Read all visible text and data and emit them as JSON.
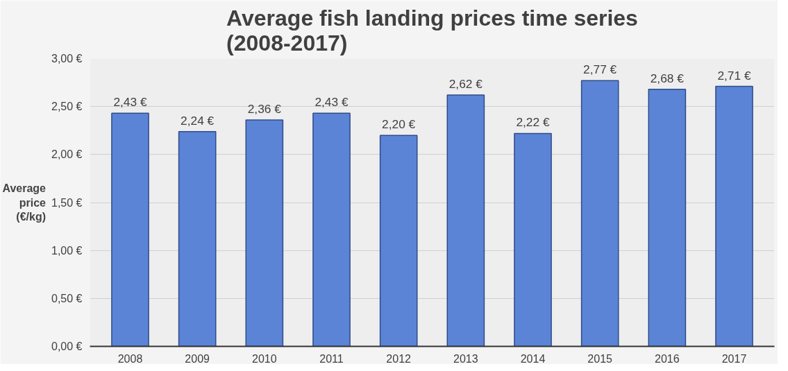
{
  "chart_data": {
    "type": "bar",
    "title": "Average fish landing prices time series (2008-2017)",
    "ylabel": "Average price (€/kg)",
    "categories": [
      "2008",
      "2009",
      "2010",
      "2011",
      "2012",
      "2013",
      "2014",
      "2015",
      "2016",
      "2017"
    ],
    "values": [
      2.43,
      2.24,
      2.36,
      2.43,
      2.2,
      2.62,
      2.22,
      2.77,
      2.68,
      2.71
    ],
    "value_labels": [
      "2,43 €",
      "2,24 €",
      "2,36 €",
      "2,43 €",
      "2,20 €",
      "2,62 €",
      "2,22 €",
      "2,77 €",
      "2,68 €",
      "2,71 €"
    ],
    "color": "#5b84d6",
    "ylim": [
      0,
      3
    ],
    "yticks": [
      {
        "value": 0,
        "label": "0,00 €"
      },
      {
        "value": 0.5,
        "label": "0,50 €"
      },
      {
        "value": 1,
        "label": "1,00 €"
      },
      {
        "value": 1.5,
        "label": "1,50 €"
      },
      {
        "value": 2,
        "label": "2,00 €"
      },
      {
        "value": 2.5,
        "label": "2,50 €"
      },
      {
        "value": 3,
        "label": "3,00 €"
      }
    ],
    "grid": "y"
  }
}
